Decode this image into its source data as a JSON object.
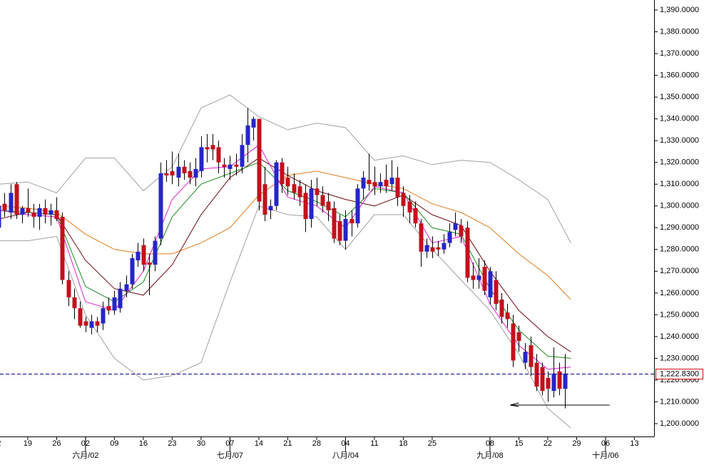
{
  "chart_data": {
    "type": "candlestick",
    "xlim": [
      -4.8,
      108.4
    ],
    "ylim": [
      1194.1,
      1394.6
    ],
    "yticks": [
      {
        "value": 1390,
        "label": "1,390.0000"
      },
      {
        "value": 1380,
        "label": "1,380.0000"
      },
      {
        "value": 1370,
        "label": "1,370.0000"
      },
      {
        "value": 1360,
        "label": "1,360.0000"
      },
      {
        "value": 1350,
        "label": "1,350.0000"
      },
      {
        "value": 1340,
        "label": "1,340.0000"
      },
      {
        "value": 1330,
        "label": "1,330.0000"
      },
      {
        "value": 1320,
        "label": "1,320.0000"
      },
      {
        "value": 1310,
        "label": "1,310.0000"
      },
      {
        "value": 1300,
        "label": "1,300.0000"
      },
      {
        "value": 1290,
        "label": "1,290.0000"
      },
      {
        "value": 1280,
        "label": "1,280.0000"
      },
      {
        "value": 1270,
        "label": "1,270.0000"
      },
      {
        "value": 1260,
        "label": "1,260.0000"
      },
      {
        "value": 1250,
        "label": "1,250.0000"
      },
      {
        "value": 1240,
        "label": "1,240.0000"
      },
      {
        "value": 1230,
        "label": "1,230.0000"
      },
      {
        "value": 1220,
        "label": "1,220.0000"
      },
      {
        "value": 1210,
        "label": "1,210.0000"
      },
      {
        "value": 1200,
        "label": "1,200.0000"
      }
    ],
    "xticks": [
      {
        "value": -5,
        "label": "2"
      },
      {
        "value": 0,
        "label": "19"
      },
      {
        "value": 5,
        "label": "26"
      },
      {
        "value": 10,
        "label": "02"
      },
      {
        "value": 15,
        "label": "09"
      },
      {
        "value": 20,
        "label": "16"
      },
      {
        "value": 25,
        "label": "23"
      },
      {
        "value": 30,
        "label": "30"
      },
      {
        "value": 35,
        "label": "07"
      },
      {
        "value": 40,
        "label": "14"
      },
      {
        "value": 45,
        "label": "21"
      },
      {
        "value": 50,
        "label": "28"
      },
      {
        "value": 55,
        "label": "04"
      },
      {
        "value": 60,
        "label": "11"
      },
      {
        "value": 65,
        "label": "18"
      },
      {
        "value": 70,
        "label": "25"
      },
      {
        "value": 80,
        "label": "08"
      },
      {
        "value": 85,
        "label": "15"
      },
      {
        "value": 90,
        "label": "22"
      },
      {
        "value": 95,
        "label": "29"
      },
      {
        "value": 100,
        "label": "06"
      },
      {
        "value": 105,
        "label": "13"
      }
    ],
    "month_ticks": [
      {
        "value": 10,
        "label": "六月/02"
      },
      {
        "value": 35,
        "label": "七月/07"
      },
      {
        "value": 55,
        "label": "八月/04"
      },
      {
        "value": 80,
        "label": "九月/08"
      },
      {
        "value": 100,
        "label": "十月/06"
      }
    ],
    "up_color": "#2626c8",
    "down_color": "#c4101c",
    "x": [
      -5,
      -4,
      -3,
      -2,
      -1,
      0,
      1,
      2,
      3,
      4,
      5,
      6,
      7,
      8,
      9,
      10,
      11,
      12,
      13,
      14,
      15,
      16,
      17,
      18,
      19,
      20,
      21,
      22,
      23,
      24,
      25,
      26,
      27,
      28,
      29,
      30,
      31,
      32,
      33,
      34,
      35,
      36,
      37,
      38,
      39,
      40,
      41,
      42,
      43,
      44,
      45,
      46,
      47,
      48,
      49,
      50,
      51,
      52,
      53,
      54,
      55,
      56,
      57,
      58,
      59,
      60,
      61,
      62,
      63,
      64,
      65,
      66,
      67,
      68,
      69,
      70,
      71,
      72,
      73,
      74,
      75,
      76,
      77,
      78,
      79,
      80,
      81,
      82,
      83,
      84,
      85,
      86,
      87,
      88,
      89,
      90,
      91,
      92,
      93
    ],
    "open": [
      1290,
      1301,
      1297,
      1310,
      1296,
      1299,
      1297,
      1295,
      1299,
      1296,
      1298,
      1295,
      1266,
      1258,
      1253,
      1247,
      1244,
      1247,
      1246,
      1254,
      1252,
      1253,
      1261,
      1264,
      1275,
      1282,
      1274,
      1273,
      1285,
      1315,
      1316,
      1313,
      1318,
      1316,
      1313,
      1316,
      1327,
      1328,
      1327,
      1319,
      1317,
      1319,
      1318,
      1328,
      1336,
      1340,
      1310,
      1298,
      1300,
      1320,
      1313,
      1310,
      1309,
      1306,
      1294,
      1308,
      1305,
      1302,
      1299,
      1293,
      1284,
      1294,
      1292,
      1308,
      1312,
      1311,
      1309,
      1312,
      1310,
      1313,
      1306,
      1302,
      1299,
      1292,
      1279,
      1281,
      1281,
      1280,
      1283,
      1289,
      1291,
      1290,
      1268,
      1266,
      1272,
      1258,
      1266,
      1257,
      1251,
      1246,
      1242,
      1228,
      1236,
      1228,
      1226,
      1221,
      1215,
      1224,
      1216
    ],
    "high": [
      1305,
      1306,
      1310,
      1311,
      1300,
      1308,
      1301,
      1301,
      1303,
      1301,
      1304,
      1297,
      1270,
      1262,
      1256,
      1249,
      1250,
      1249,
      1256,
      1258,
      1261,
      1265,
      1268,
      1278,
      1283,
      1285,
      1278,
      1286,
      1320,
      1321,
      1325,
      1324,
      1321,
      1320,
      1322,
      1332,
      1333,
      1333,
      1330,
      1322,
      1323,
      1324,
      1333,
      1345,
      1341,
      1340,
      1318,
      1303,
      1321,
      1322,
      1318,
      1315,
      1312,
      1310,
      1312,
      1313,
      1309,
      1306,
      1302,
      1296,
      1298,
      1298,
      1310,
      1316,
      1324,
      1318,
      1315,
      1319,
      1321,
      1318,
      1309,
      1305,
      1302,
      1294,
      1285,
      1286,
      1284,
      1287,
      1292,
      1297,
      1294,
      1293,
      1274,
      1276,
      1275,
      1272,
      1270,
      1260,
      1255,
      1250,
      1245,
      1237,
      1240,
      1232,
      1228,
      1224,
      1235,
      1228,
      1232
    ],
    "low": [
      1283,
      1295,
      1294,
      1294,
      1292,
      1295,
      1290,
      1289,
      1292,
      1291,
      1293,
      1264,
      1254,
      1248,
      1244,
      1242,
      1241,
      1242,
      1243,
      1250,
      1250,
      1251,
      1258,
      1262,
      1272,
      1270,
      1259,
      1270,
      1282,
      1311,
      1310,
      1309,
      1312,
      1310,
      1309,
      1313,
      1320,
      1321,
      1315,
      1313,
      1312,
      1314,
      1315,
      1320,
      1330,
      1298,
      1293,
      1294,
      1298,
      1306,
      1305,
      1303,
      1300,
      1288,
      1290,
      1300,
      1297,
      1293,
      1283,
      1282,
      1280,
      1286,
      1290,
      1303,
      1307,
      1305,
      1306,
      1306,
      1307,
      1300,
      1295,
      1292,
      1290,
      1272,
      1276,
      1276,
      1277,
      1278,
      1281,
      1286,
      1283,
      1265,
      1262,
      1262,
      1259,
      1255,
      1252,
      1246,
      1244,
      1226,
      1233,
      1225,
      1222,
      1215,
      1213,
      1210,
      1212,
      1213,
      1207
    ],
    "close": [
      1300,
      1298,
      1306,
      1296,
      1299,
      1297,
      1295,
      1299,
      1296,
      1298,
      1294,
      1266,
      1258,
      1253,
      1245,
      1245,
      1247,
      1245,
      1253,
      1252,
      1258,
      1262,
      1264,
      1276,
      1279,
      1273,
      1273,
      1284,
      1315,
      1314,
      1314,
      1318,
      1315,
      1313,
      1317,
      1327,
      1326,
      1326,
      1320,
      1318,
      1319,
      1318,
      1328,
      1337,
      1340,
      1302,
      1296,
      1300,
      1320,
      1310,
      1309,
      1306,
      1304,
      1294,
      1308,
      1305,
      1300,
      1298,
      1285,
      1284,
      1294,
      1292,
      1308,
      1313,
      1310,
      1309,
      1311,
      1309,
      1313,
      1304,
      1300,
      1297,
      1292,
      1279,
      1282,
      1279,
      1280,
      1283,
      1288,
      1292,
      1286,
      1267,
      1266,
      1268,
      1261,
      1270,
      1255,
      1249,
      1248,
      1229,
      1238,
      1233,
      1226,
      1217,
      1215,
      1216,
      1223,
      1216,
      1223
    ],
    "indicator_x": [
      -5,
      0,
      5,
      10,
      15,
      20,
      25,
      30,
      35,
      40,
      45,
      50,
      55,
      60,
      65,
      70,
      75,
      80,
      85,
      90,
      94
    ],
    "indicators": [
      {
        "color": "#a0a0a0",
        "values": [
          1310,
          1311,
          1306,
          1322,
          1322,
          1307,
          1318,
          1345,
          1351,
          1341,
          1335,
          1338,
          1336,
          1321,
          1323,
          1319,
          1321,
          1320,
          1312,
          1303,
          1283
        ]
      },
      {
        "color": "#a0a0a0",
        "values": [
          1284,
          1284,
          1286,
          1250,
          1230,
          1220,
          1222,
          1228,
          1265,
          1300,
          1296,
          1295,
          1280,
          1296,
          1296,
          1280,
          1266,
          1252,
          1232,
          1207,
          1198
        ]
      },
      {
        "color": "#e07b1c",
        "values": [
          1300,
          1299,
          1297,
          1287,
          1280,
          1278,
          1278,
          1283,
          1290,
          1305,
          1314,
          1316,
          1313,
          1310,
          1308,
          1301,
          1297,
          1290,
          1278,
          1268,
          1257
        ]
      },
      {
        "color": "#6b0a12",
        "values": [
          1294,
          1297,
          1296,
          1275,
          1262,
          1259,
          1273,
          1296,
          1313,
          1322,
          1314,
          1307,
          1303,
          1300,
          1305,
          1296,
          1291,
          1270,
          1252,
          1240,
          1233
        ]
      },
      {
        "color": "#1e8a1e",
        "values": [
          1298,
          1297,
          1296,
          1263,
          1256,
          1265,
          1295,
          1310,
          1315,
          1320,
          1307,
          1302,
          1295,
          1308,
          1306,
          1290,
          1287,
          1262,
          1243,
          1231,
          1230
        ]
      },
      {
        "color": "#e020d0",
        "values": [
          1298,
          1296,
          1295,
          1256,
          1252,
          1270,
          1303,
          1317,
          1318,
          1328,
          1304,
          1300,
          1290,
          1309,
          1306,
          1283,
          1286,
          1255,
          1236,
          1225,
          1226
        ]
      }
    ],
    "last_price": {
      "value": 1222.83,
      "label": "1,222.8300"
    },
    "horizontal_line": {
      "value": 1208.5,
      "x": [
        83.5,
        100.7
      ]
    }
  }
}
